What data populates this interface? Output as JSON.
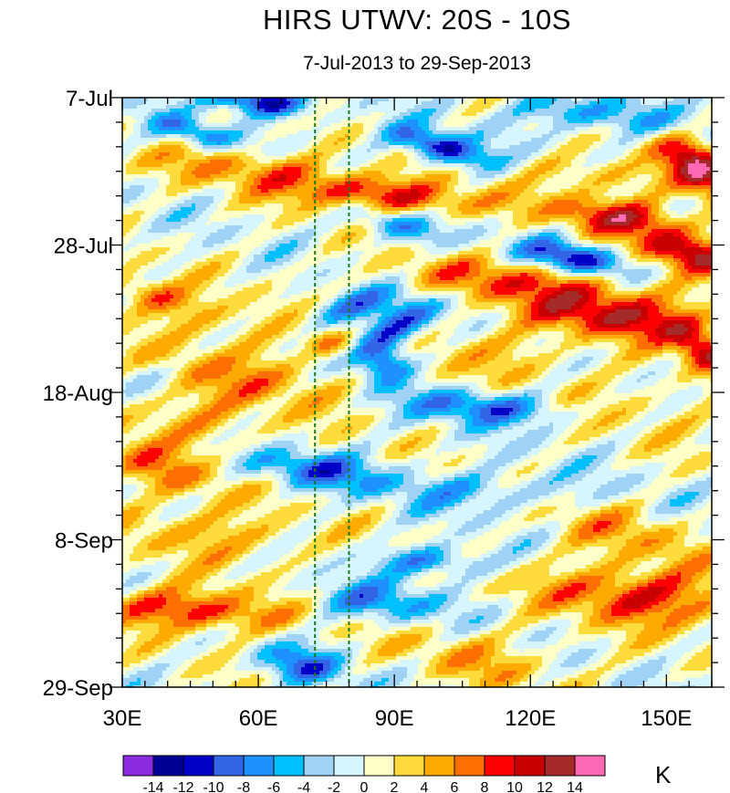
{
  "chart_data": {
    "type": "heatmap",
    "title": "HIRS UTWV: 20S - 10S",
    "subtitle": "7-Jul-2013 to 29-Sep-2013",
    "xlabel": "",
    "ylabel": "",
    "xlim": [
      30,
      160
    ],
    "x_ticks": [
      {
        "value": 30,
        "label": "30E"
      },
      {
        "value": 60,
        "label": "60E"
      },
      {
        "value": 90,
        "label": "90E"
      },
      {
        "value": 120,
        "label": "120E"
      },
      {
        "value": 150,
        "label": "150E"
      }
    ],
    "y_ticks": [
      {
        "day": 0,
        "label": "7-Jul"
      },
      {
        "day": 21,
        "label": "28-Jul"
      },
      {
        "day": 42,
        "label": "18-Aug"
      },
      {
        "day": 63,
        "label": "8-Sep"
      },
      {
        "day": 84,
        "label": "29-Sep"
      }
    ],
    "ylim_days": [
      0,
      84
    ],
    "reference_lines_lon": [
      72.5,
      80
    ],
    "colorbar": {
      "unit": "K",
      "levels": [
        -14,
        -12,
        -10,
        -8,
        -6,
        -4,
        -2,
        0,
        2,
        4,
        6,
        8,
        10,
        12,
        14
      ],
      "labels": [
        "-14",
        "-12",
        "-10",
        "-8",
        "-6",
        "-4",
        "-2",
        "0",
        "2",
        "4",
        "6",
        "8",
        "10",
        "12",
        "14"
      ],
      "colors": [
        "#8a2be2",
        "#000096",
        "#0000c8",
        "#3264e6",
        "#1e90ff",
        "#00bfff",
        "#a0d2f5",
        "#d7f5ff",
        "#ffffc8",
        "#ffdc3c",
        "#ffaa00",
        "#ff6e00",
        "#ff0000",
        "#c80000",
        "#a52a2a",
        "#ff69b4"
      ]
    },
    "features": [
      {
        "lon": 60,
        "day": 0.5,
        "amp": -13,
        "wlon": 7,
        "wday": 1.5,
        "speed": 2.2
      },
      {
        "lon": 46,
        "day": 5,
        "amp": -7,
        "wlon": 5,
        "wday": 1.8,
        "speed": 2.5
      },
      {
        "lon": 100,
        "day": 7,
        "amp": -12,
        "wlon": 6,
        "wday": 2,
        "speed": 2.5
      },
      {
        "lon": 130,
        "day": 2,
        "amp": -7,
        "wlon": 9,
        "wday": 2,
        "speed": 2
      },
      {
        "lon": 150,
        "day": 4,
        "amp": -5,
        "wlon": 6,
        "wday": 2,
        "speed": 2
      },
      {
        "lon": 60,
        "day": 10,
        "amp": 6,
        "wlon": 14,
        "wday": 2.2,
        "speed": 3
      },
      {
        "lon": 88,
        "day": 14,
        "amp": 10,
        "wlon": 14,
        "wday": 2,
        "speed": 3
      },
      {
        "lon": 135,
        "day": 11,
        "amp": 5,
        "wlon": 10,
        "wday": 2,
        "speed": 2
      },
      {
        "lon": 157,
        "day": 10,
        "amp": 12,
        "wlon": 5,
        "wday": 4,
        "speed": 1
      },
      {
        "lon": 140,
        "day": 17,
        "amp": 10,
        "wlon": 10,
        "wday": 2,
        "speed": 2
      },
      {
        "lon": 130,
        "day": 23,
        "amp": -12,
        "wlon": 7,
        "wday": 1.8,
        "speed": 2
      },
      {
        "lon": 90,
        "day": 18,
        "amp": -7,
        "wlon": 6,
        "wday": 2,
        "speed": 2.5
      },
      {
        "lon": 155,
        "day": 22,
        "amp": 11,
        "wlon": 7,
        "wday": 2,
        "speed": 1.5
      },
      {
        "lon": 118,
        "day": 26,
        "amp": 7,
        "wlon": 18,
        "wday": 2.2,
        "speed": 2.5
      },
      {
        "lon": 140,
        "day": 31,
        "amp": 11,
        "wlon": 14,
        "wday": 2.5,
        "speed": 2
      },
      {
        "lon": 158,
        "day": 36,
        "amp": 10,
        "wlon": 4,
        "wday": 2.5,
        "speed": 1
      },
      {
        "lon": 80,
        "day": 30,
        "amp": -7,
        "wlon": 6,
        "wday": 2,
        "speed": -2
      },
      {
        "lon": 90,
        "day": 33,
        "amp": -11,
        "wlon": 5,
        "wday": 3,
        "speed": -1.5
      },
      {
        "lon": 88,
        "day": 38,
        "amp": -9,
        "wlon": 4,
        "wday": 2,
        "speed": 0
      },
      {
        "lon": 76,
        "day": 35,
        "amp": 6,
        "wlon": 4,
        "wday": 1.5,
        "speed": 0
      },
      {
        "lon": 50,
        "day": 32,
        "amp": 4,
        "wlon": 12,
        "wday": 3,
        "speed": 2
      },
      {
        "lon": 36,
        "day": 28,
        "amp": 6,
        "wlon": 6,
        "wday": 2,
        "speed": 2
      },
      {
        "lon": 60,
        "day": 40,
        "amp": 5,
        "wlon": 16,
        "wday": 3,
        "speed": 2
      },
      {
        "lon": 112,
        "day": 36,
        "amp": 4,
        "wlon": 12,
        "wday": 3,
        "speed": 2
      },
      {
        "lon": 110,
        "day": 44,
        "amp": -9,
        "wlon": 12,
        "wday": 1.8,
        "speed": 2
      },
      {
        "lon": 45,
        "day": 46,
        "amp": 5,
        "wlon": 12,
        "wday": 3,
        "speed": 2
      },
      {
        "lon": 145,
        "day": 44,
        "amp": 3,
        "wlon": 15,
        "wday": 3,
        "speed": 2
      },
      {
        "lon": 72,
        "day": 53,
        "amp": -8,
        "wlon": 10,
        "wday": 2,
        "speed": 2
      },
      {
        "lon": 110,
        "day": 56,
        "amp": -5,
        "wlon": 15,
        "wday": 2,
        "speed": 1
      },
      {
        "lon": 38,
        "day": 53,
        "amp": 6,
        "wlon": 8,
        "wday": 3,
        "speed": 2
      },
      {
        "lon": 50,
        "day": 62,
        "amp": 5,
        "wlon": 14,
        "wday": 3,
        "speed": 2
      },
      {
        "lon": 98,
        "day": 66,
        "amp": -8,
        "wlon": 8,
        "wday": 1.5,
        "speed": 1
      },
      {
        "lon": 85,
        "day": 72,
        "amp": -7,
        "wlon": 10,
        "wday": 2,
        "speed": 1
      },
      {
        "lon": 45,
        "day": 73,
        "amp": 10,
        "wlon": 14,
        "wday": 2.2,
        "speed": 2
      },
      {
        "lon": 145,
        "day": 71,
        "amp": 10,
        "wlon": 14,
        "wday": 3,
        "speed": 1.5
      },
      {
        "lon": 70,
        "day": 81,
        "amp": -8,
        "wlon": 6,
        "wday": 2,
        "speed": 1
      },
      {
        "lon": 110,
        "day": 80,
        "amp": 4,
        "wlon": 12,
        "wday": 3,
        "speed": 2
      },
      {
        "lon": 140,
        "day": 62,
        "amp": 4,
        "wlon": 12,
        "wday": 3,
        "speed": 2
      },
      {
        "lon": 35,
        "day": 40,
        "amp": -3,
        "wlon": 5,
        "wday": 2,
        "speed": 0
      }
    ]
  }
}
